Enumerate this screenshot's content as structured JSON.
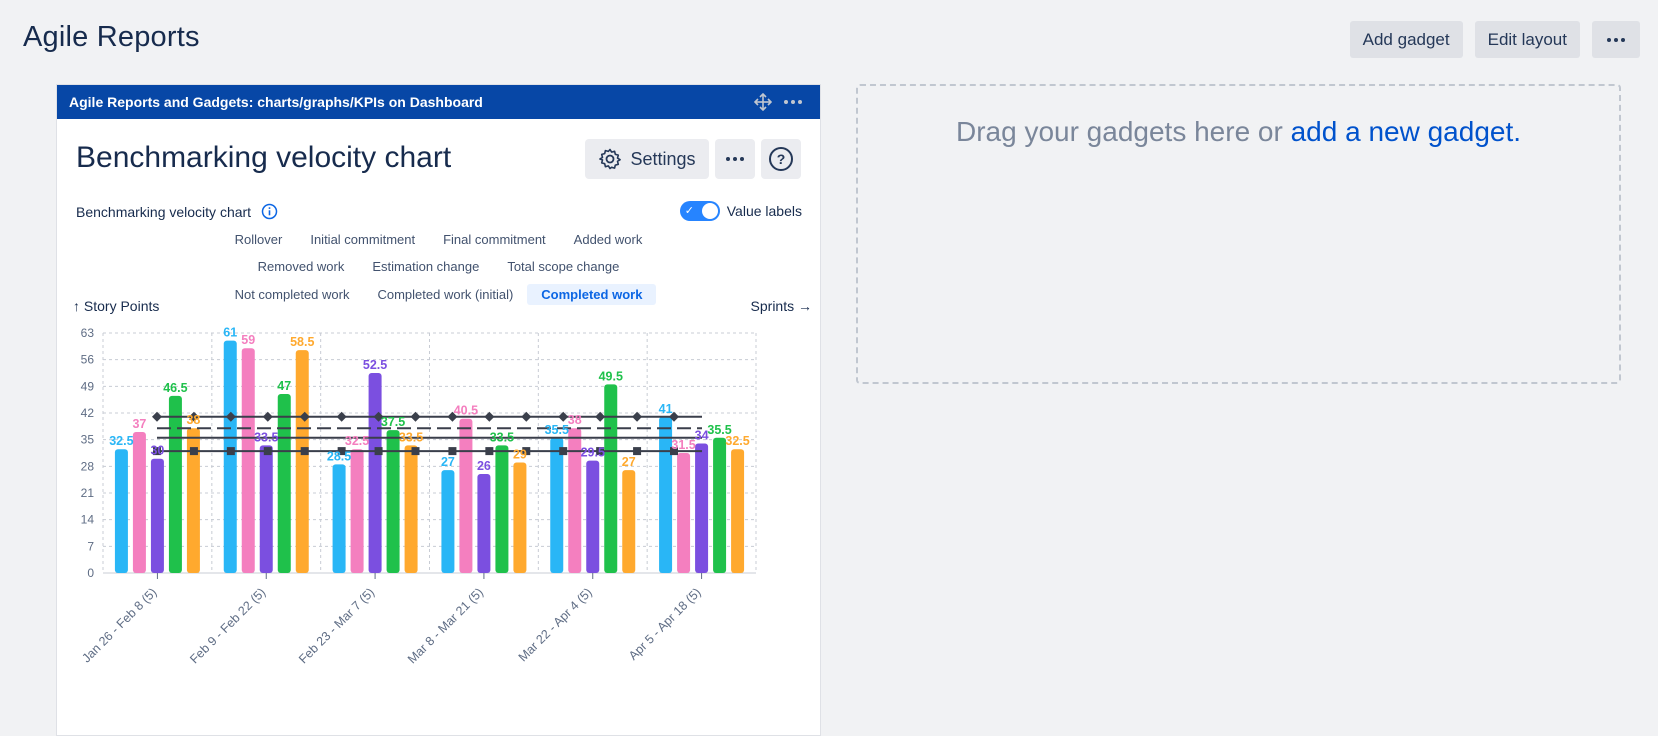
{
  "page": {
    "title": "Agile Reports"
  },
  "toolbar": {
    "add_gadget": "Add gadget",
    "edit_layout": "Edit layout",
    "more_icon": "more-horizontal-icon"
  },
  "gadget": {
    "header_title": "Agile Reports and Gadgets: charts/graphs/KPIs on Dashboard",
    "title": "Benchmarking velocity chart",
    "settings_label": "Settings",
    "subtitle": "Benchmarking velocity chart",
    "value_labels_label": "Value labels",
    "value_labels_on": true,
    "legend": [
      [
        "Rollover",
        "Initial commitment",
        "Final commitment",
        "Added work"
      ],
      [
        "Removed work",
        "Estimation change",
        "Total scope change"
      ],
      [
        "Not completed work",
        "Completed work (initial)",
        "Completed work"
      ]
    ],
    "legend_active": "Completed work",
    "y_caption": "↑ Story Points",
    "x_caption": "Sprints →"
  },
  "dropzone": {
    "text": "Drag your gadgets here or ",
    "link": "add a new gadget."
  },
  "chart_data": {
    "type": "bar",
    "title": "Benchmarking velocity chart",
    "xlabel": "Sprints",
    "ylabel": "Story Points",
    "ylim": [
      0,
      63
    ],
    "yticks": [
      0,
      7,
      14,
      21,
      28,
      35,
      42,
      49,
      56,
      63
    ],
    "categories": [
      "Jan 26 - Feb 8 (5)",
      "Feb 9 - Feb 22 (5)",
      "Feb 23 - Mar 7 (5)",
      "Mar 8 - Mar 21 (5)",
      "Mar 22 - Apr 4 (5)",
      "Apr 5 - Apr 18 (5)"
    ],
    "colors": [
      "#29b6f6",
      "#f47fbf",
      "#7b4fe0",
      "#1fc14b",
      "#ffa92e"
    ],
    "values": [
      [
        32.5,
        37,
        30,
        46.5,
        38
      ],
      [
        61,
        59,
        33.5,
        47,
        58.5
      ],
      [
        28.5,
        32.5,
        52.5,
        37.5,
        33.5
      ],
      [
        27,
        40.5,
        26,
        33.5,
        29
      ],
      [
        35.5,
        38,
        29.5,
        49.5,
        27
      ],
      [
        41,
        31.5,
        34,
        35.5,
        32.5
      ]
    ],
    "reference_lines": [
      {
        "value": 41,
        "style": "solid",
        "marker": "diamond",
        "color": "#3a3f4b"
      },
      {
        "value": 38,
        "style": "dashed",
        "marker": "none",
        "color": "#3a3f4b"
      },
      {
        "value": 35.5,
        "style": "solid",
        "marker": "none",
        "color": "#3a3f4b"
      },
      {
        "value": 32,
        "style": "solid",
        "marker": "square",
        "color": "#3a3f4b"
      }
    ],
    "grid": true
  }
}
